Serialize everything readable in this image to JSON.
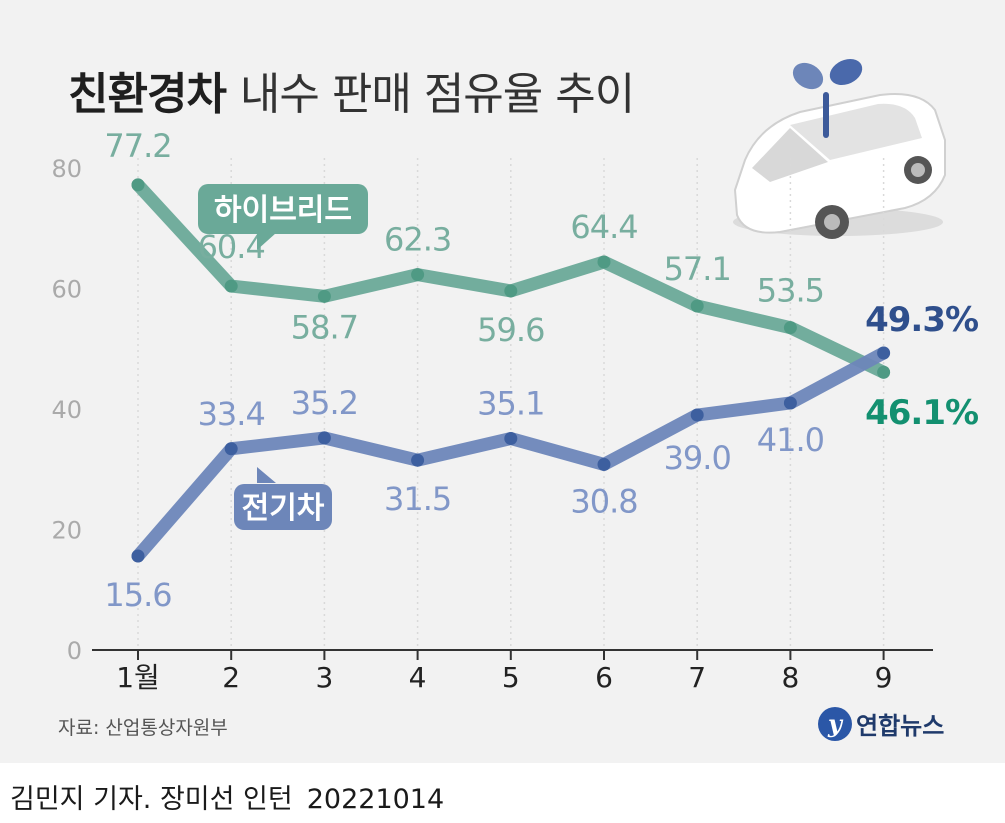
{
  "title": {
    "bold": "친환경차",
    "rest": "내수 판매 점유율 추이"
  },
  "source": "자료: 산업통상자원부",
  "logo_text": "연합뉴스",
  "credit": {
    "byline": "김민지 기자. 장미선 인턴",
    "date": "20221014"
  },
  "colors": {
    "hybrid": "#6aa998",
    "hybrid_label": "#78ae9f",
    "ev": "#6d86b9",
    "ev_label": "#8197c8",
    "ev_last": "#2f4f8c",
    "hybrid_last": "#139070",
    "axis": "#333333",
    "grid": "#d9d9d9"
  },
  "chart_data": {
    "type": "line",
    "categories": [
      "1월",
      "2",
      "3",
      "4",
      "5",
      "6",
      "7",
      "8",
      "9"
    ],
    "ylim": [
      0,
      80
    ],
    "yticks": [
      "0",
      "20",
      "40",
      "60",
      "80"
    ],
    "grid": "vertical dotted",
    "series": [
      {
        "name": "하이브리드",
        "values": [
          77.2,
          60.4,
          58.7,
          62.3,
          59.6,
          64.4,
          57.1,
          53.5,
          46.1
        ],
        "labels": [
          "77.2",
          "60.4",
          "58.7",
          "62.3",
          "59.6",
          "64.4",
          "57.1",
          "53.5",
          "46.1%"
        ]
      },
      {
        "name": "전기차",
        "values": [
          15.6,
          33.4,
          35.2,
          31.5,
          35.1,
          30.8,
          39.0,
          41.0,
          49.3
        ],
        "labels": [
          "15.6",
          "33.4",
          "35.2",
          "31.5",
          "35.1",
          "30.8",
          "39.0",
          "41.0",
          "49.3%"
        ]
      }
    ]
  }
}
